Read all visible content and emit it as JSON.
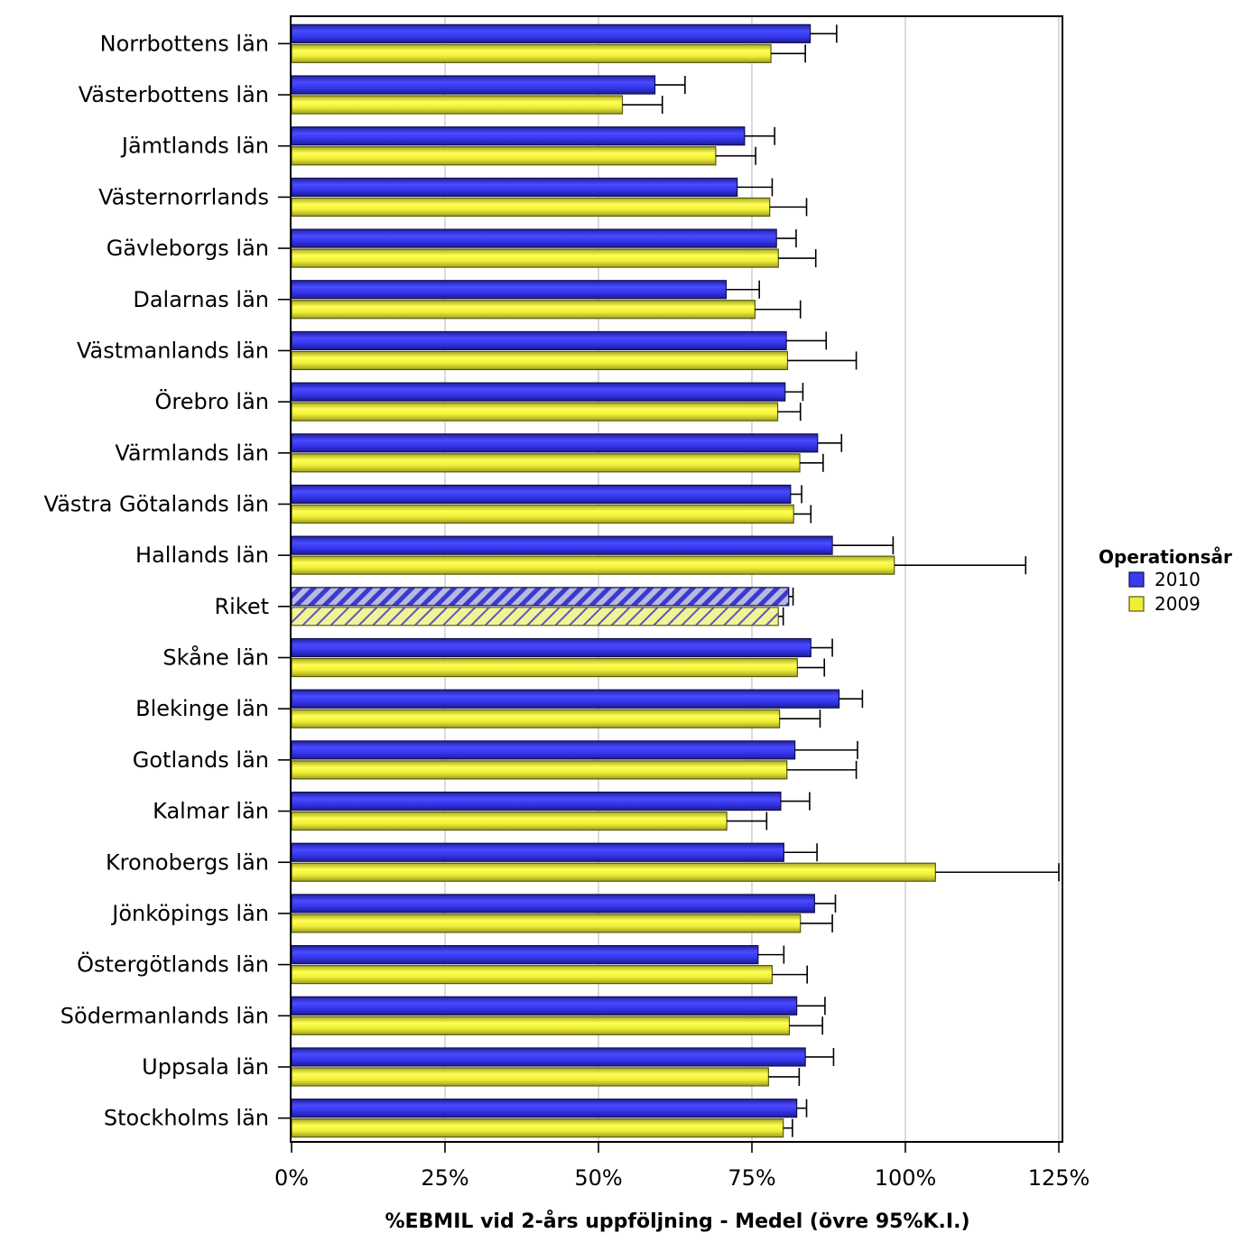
{
  "chart_data": {
    "type": "bar",
    "orientation": "horizontal",
    "categories": [
      "Norrbottens län",
      "Västerbottens län",
      "Jämtlands län",
      "Västernorrlands",
      "Gävleborgs län",
      "Dalarnas län",
      "Västmanlands län",
      "Örebro län",
      "Värmlands län",
      "Västra Götalands län",
      "Hallands län",
      "Riket",
      "Skåne län",
      "Blekinge län",
      "Gotlands län",
      "Kalmar län",
      "Kronobergs län",
      "Jönköpings län",
      "Östergötlands län",
      "Södermanlands län",
      "Uppsala län",
      "Stockholms län"
    ],
    "highlight_category": "Riket",
    "series": [
      {
        "name": "2010",
        "color": "#3333ee",
        "values": [
          84.5,
          59.2,
          73.8,
          72.6,
          79.0,
          70.8,
          80.6,
          80.4,
          85.7,
          81.3,
          88.1,
          81.0,
          84.6,
          89.2,
          82.0,
          79.7,
          80.2,
          85.2,
          76.0,
          82.3,
          83.7,
          82.3
        ],
        "upper_ci": [
          88.8,
          64.1,
          78.7,
          78.3,
          82.2,
          76.2,
          87.1,
          83.3,
          89.6,
          83.1,
          98.0,
          81.7,
          88.1,
          93.0,
          92.2,
          84.4,
          85.6,
          88.6,
          80.2,
          86.9,
          88.3,
          83.9
        ]
      },
      {
        "name": "2009",
        "color": "#eeee33",
        "values": [
          78.1,
          53.9,
          69.1,
          77.9,
          79.3,
          75.5,
          80.8,
          79.2,
          82.8,
          81.8,
          98.2,
          79.3,
          82.4,
          79.5,
          80.7,
          70.9,
          104.9,
          82.9,
          78.3,
          81.1,
          77.7,
          80.1
        ],
        "upper_ci": [
          83.7,
          60.4,
          75.6,
          83.9,
          85.4,
          82.9,
          92.0,
          82.9,
          86.6,
          84.6,
          119.6,
          80.1,
          86.8,
          86.1,
          92.0,
          77.4,
          125.0,
          88.1,
          84.0,
          86.5,
          82.7,
          81.6
        ]
      }
    ],
    "x_tick_labels": [
      "0%",
      "25%",
      "50%",
      "75%",
      "100%",
      "125%"
    ],
    "x_ticks": [
      0,
      25,
      50,
      75,
      100,
      125
    ],
    "xlim": [
      0,
      125.5
    ],
    "xlabel": "%EBMIL vid 2-års uppföljning - Medel (övre 95%K.I.)",
    "grid": "vertical",
    "legend": {
      "title": "Operationsår",
      "placement": "right",
      "entries": [
        "2010",
        "2009"
      ]
    }
  }
}
